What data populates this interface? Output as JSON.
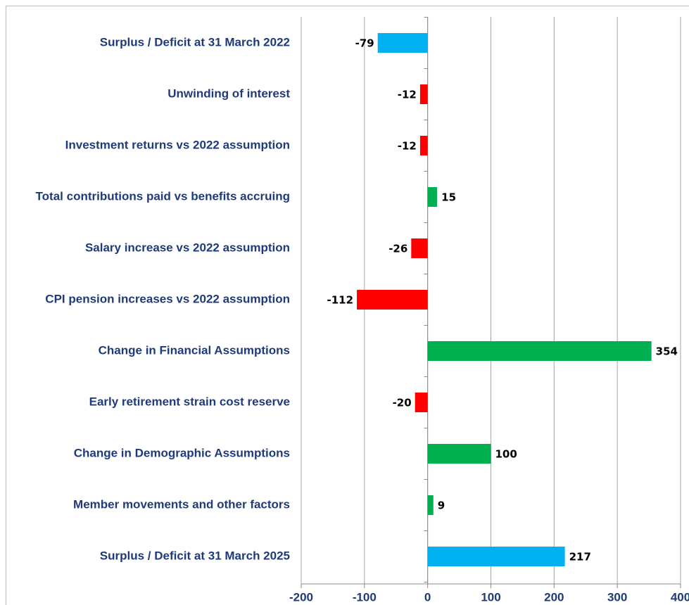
{
  "chart_data": {
    "type": "bar",
    "orientation": "horizontal",
    "categories": [
      "Surplus / Deficit at 31 March 2022",
      "Unwinding of interest",
      "Investment returns vs 2022 assumption",
      "Total contributions paid vs benefits accruing",
      "Salary increase vs 2022 assumption",
      "CPI pension increases vs 2022 assumption",
      "Change in Financial Assumptions",
      "Early retirement strain cost reserve",
      "Change in Demographic Assumptions",
      "Member movements and other factors",
      "Surplus / Deficit at 31 March 2025"
    ],
    "values": [
      -79,
      -12,
      -12,
      15,
      -26,
      -112,
      354,
      -20,
      100,
      9,
      217
    ],
    "colors": [
      "#00b0f0",
      "#ff0000",
      "#ff0000",
      "#00b050",
      "#ff0000",
      "#ff0000",
      "#00b050",
      "#ff0000",
      "#00b050",
      "#00b050",
      "#00b0f0"
    ],
    "xlim": [
      -200,
      400
    ],
    "xticks": [
      -200,
      -100,
      0,
      100,
      200,
      300,
      400
    ],
    "grid": true
  }
}
